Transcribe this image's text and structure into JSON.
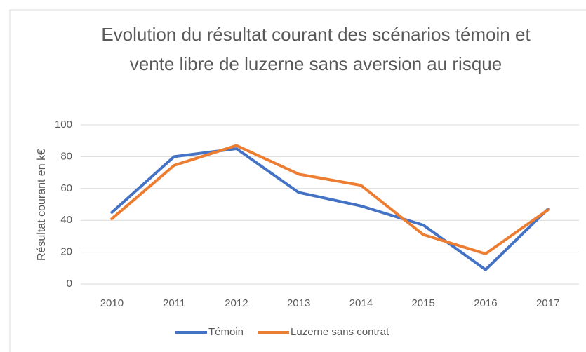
{
  "chart_data": {
    "type": "line",
    "title": "Evolution du résultat courant des scénarios témoin et vente libre de luzerne sans aversion au risque",
    "y_label": "Résultat courant en k€",
    "categories": [
      "2010",
      "2011",
      "2012",
      "2013",
      "2014",
      "2015",
      "2016",
      "2017"
    ],
    "series": [
      {
        "name": "Témoin",
        "color": "#4472c4",
        "values": [
          45,
          80,
          85,
          57.5,
          49,
          37,
          9,
          47
        ]
      },
      {
        "name": "Luzerne sans contrat",
        "color": "#ed7d31",
        "values": [
          41,
          74.5,
          87,
          69,
          62,
          31,
          19,
          46.5
        ]
      }
    ],
    "ylim": [
      0,
      100
    ],
    "yticks": [
      0,
      20,
      40,
      60,
      80,
      100
    ],
    "grid": true,
    "legend": "bottom"
  }
}
